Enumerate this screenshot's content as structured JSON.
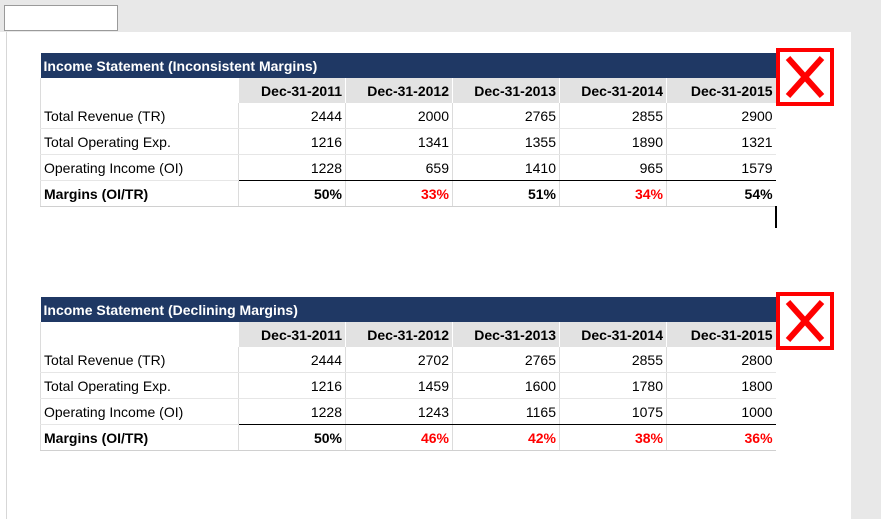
{
  "tables": [
    {
      "title": "Income Statement (Inconsistent Margins)",
      "headers": [
        "Dec-31-2011",
        "Dec-31-2012",
        "Dec-31-2013",
        "Dec-31-2014",
        "Dec-31-2015"
      ],
      "rows": [
        {
          "label": "Total Revenue (TR)",
          "values": [
            "2444",
            "2000",
            "2765",
            "2855",
            "2900"
          ]
        },
        {
          "label": "Total Operating Exp.",
          "values": [
            "1216",
            "1341",
            "1355",
            "1890",
            "1321"
          ]
        },
        {
          "label": "Operating Income (OI)",
          "values": [
            "1228",
            "659",
            "1410",
            "965",
            "1579"
          ]
        }
      ],
      "margins": {
        "label": "Margins (OI/TR)",
        "values": [
          "50%",
          "33%",
          "51%",
          "34%",
          "54%"
        ],
        "highlighted_red": [
          false,
          true,
          false,
          true,
          false
        ]
      },
      "icon": "red-x-icon"
    },
    {
      "title": "Income Statement (Declining Margins)",
      "headers": [
        "Dec-31-2011",
        "Dec-31-2012",
        "Dec-31-2013",
        "Dec-31-2014",
        "Dec-31-2015"
      ],
      "rows": [
        {
          "label": "Total Revenue (TR)",
          "values": [
            "2444",
            "2702",
            "2765",
            "2855",
            "2800"
          ]
        },
        {
          "label": "Total Operating Exp.",
          "values": [
            "1216",
            "1459",
            "1600",
            "1780",
            "1800"
          ]
        },
        {
          "label": "Operating Income (OI)",
          "values": [
            "1228",
            "1243",
            "1165",
            "1075",
            "1000"
          ]
        }
      ],
      "margins": {
        "label": "Margins (OI/TR)",
        "values": [
          "50%",
          "46%",
          "42%",
          "38%",
          "36%"
        ],
        "highlighted_red": [
          false,
          true,
          true,
          true,
          true
        ]
      },
      "icon": "red-x-icon"
    }
  ],
  "colors": {
    "title_bar": "#1f3864",
    "header_fill": "#e2e2e2",
    "negative_text": "#ff0000",
    "x_mark": "#ff0000"
  }
}
